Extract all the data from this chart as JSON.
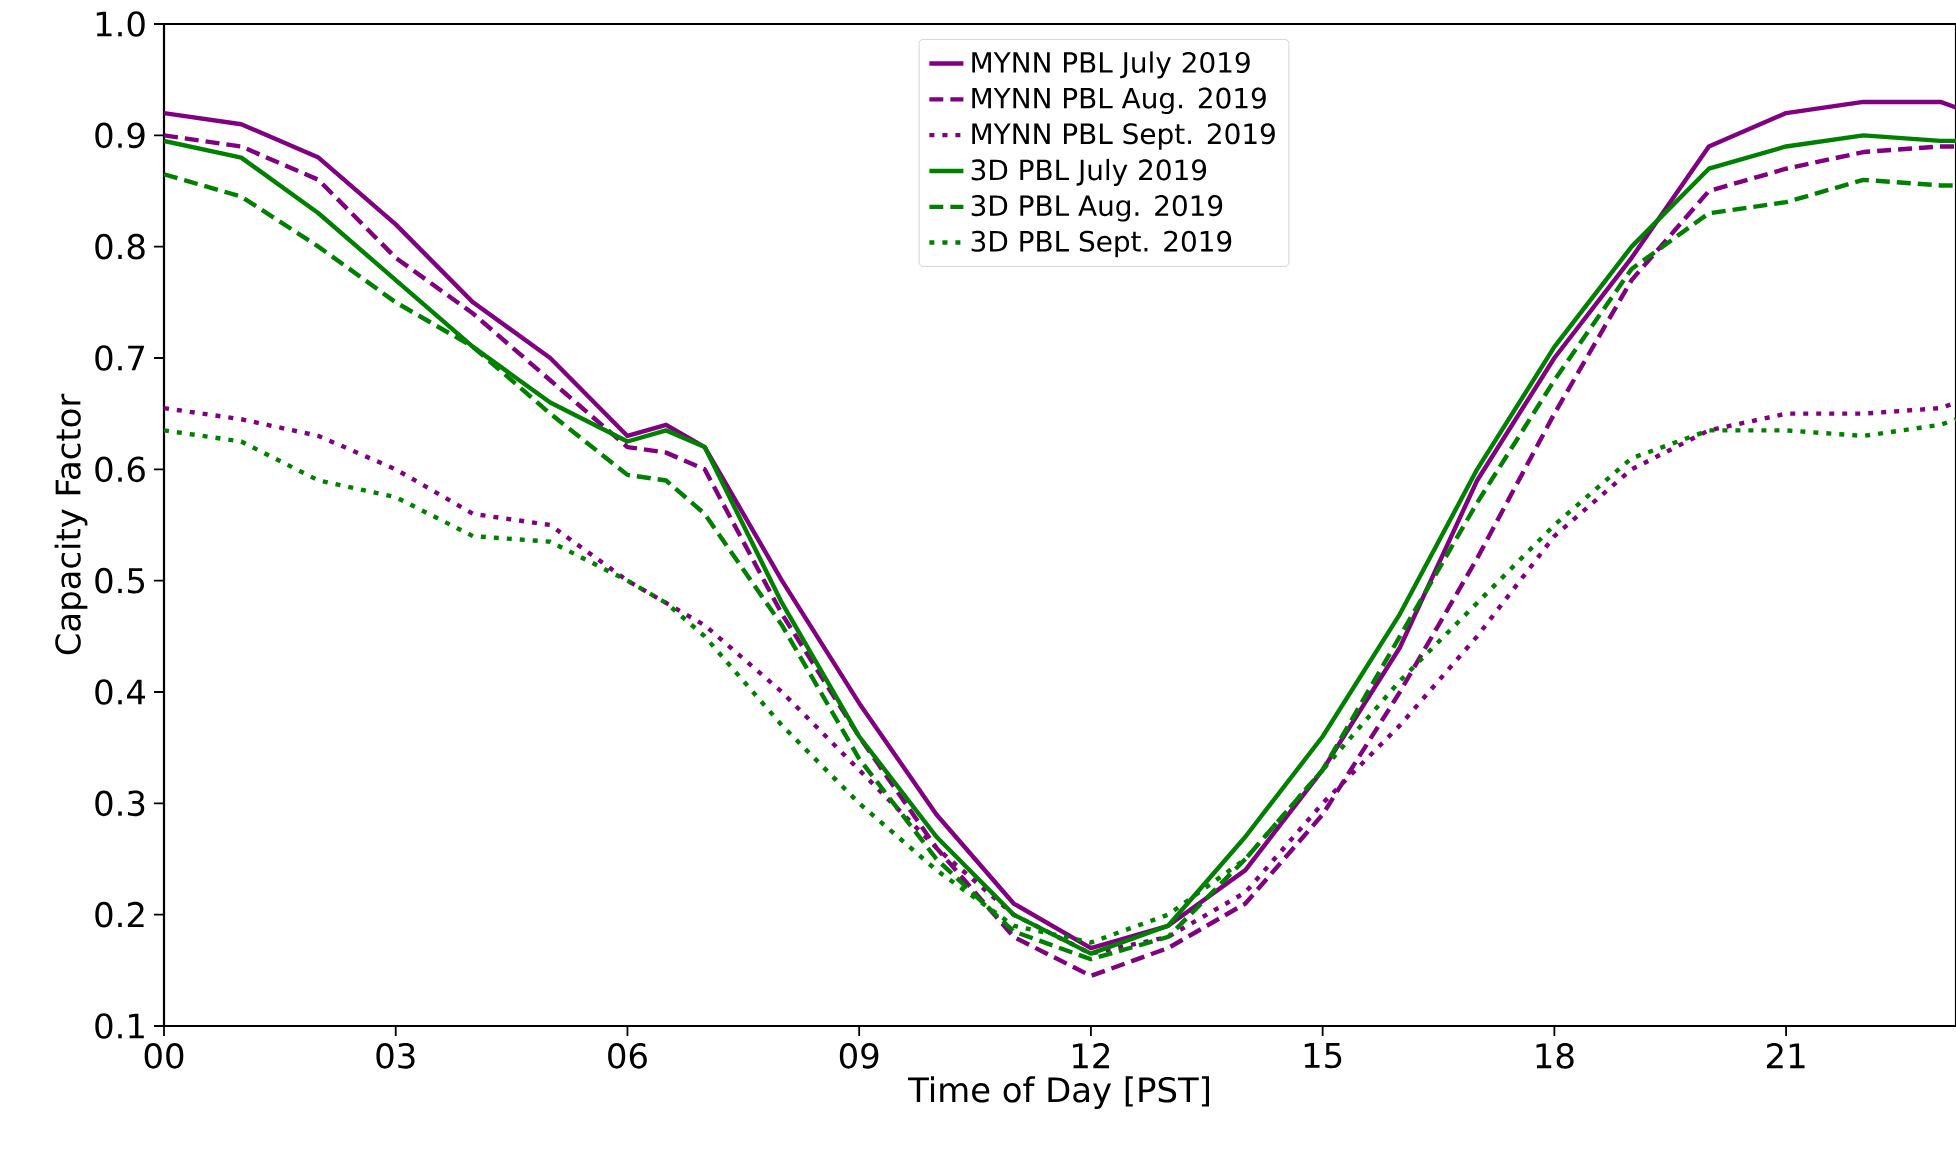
{
  "chart_data": {
    "type": "line",
    "xlabel": "Time of Day [PST]",
    "ylabel": "Capacity Factor",
    "x": [
      0,
      1,
      2,
      3,
      4,
      5,
      6,
      6.5,
      7,
      8,
      9,
      10,
      11,
      12,
      13,
      14,
      15,
      16,
      17,
      18,
      19,
      20,
      21,
      22,
      23,
      23.2
    ],
    "series": [
      {
        "name": "MYNN PBL July 2019",
        "color": "#800080",
        "line_style": "solid",
        "values": [
          0.92,
          0.91,
          0.88,
          0.82,
          0.75,
          0.7,
          0.63,
          0.64,
          0.62,
          0.5,
          0.39,
          0.29,
          0.21,
          0.17,
          0.19,
          0.24,
          0.33,
          0.44,
          0.59,
          0.7,
          0.79,
          0.89,
          0.92,
          0.93,
          0.93,
          0.925
        ]
      },
      {
        "name": "MYNN PBL Aug. 2019",
        "color": "#800080",
        "line_style": "dashed",
        "values": [
          0.9,
          0.89,
          0.86,
          0.79,
          0.74,
          0.68,
          0.62,
          0.615,
          0.6,
          0.47,
          0.36,
          0.26,
          0.18,
          0.145,
          0.17,
          0.21,
          0.29,
          0.4,
          0.52,
          0.65,
          0.77,
          0.85,
          0.87,
          0.885,
          0.89,
          0.89
        ]
      },
      {
        "name": "MYNN PBL Sept. 2019",
        "color": "#800080",
        "line_style": "dotted",
        "values": [
          0.655,
          0.645,
          0.63,
          0.6,
          0.56,
          0.55,
          0.5,
          0.48,
          0.46,
          0.4,
          0.33,
          0.26,
          0.2,
          0.165,
          0.18,
          0.22,
          0.3,
          0.37,
          0.45,
          0.54,
          0.6,
          0.635,
          0.65,
          0.65,
          0.655,
          0.66
        ]
      },
      {
        "name": "3D PBL July 2019",
        "color": "#008000",
        "line_style": "solid",
        "values": [
          0.895,
          0.88,
          0.83,
          0.77,
          0.71,
          0.66,
          0.625,
          0.635,
          0.62,
          0.48,
          0.36,
          0.27,
          0.2,
          0.165,
          0.19,
          0.27,
          0.36,
          0.47,
          0.6,
          0.71,
          0.8,
          0.87,
          0.89,
          0.9,
          0.895,
          0.895
        ]
      },
      {
        "name": "3D PBL Aug. 2019",
        "color": "#008000",
        "line_style": "dashed",
        "values": [
          0.865,
          0.845,
          0.8,
          0.75,
          0.71,
          0.65,
          0.595,
          0.59,
          0.56,
          0.46,
          0.34,
          0.25,
          0.185,
          0.16,
          0.18,
          0.25,
          0.33,
          0.45,
          0.57,
          0.68,
          0.78,
          0.83,
          0.84,
          0.86,
          0.855,
          0.855
        ]
      },
      {
        "name": "3D PBL Sept. 2019",
        "color": "#008000",
        "line_style": "dotted",
        "values": [
          0.635,
          0.625,
          0.59,
          0.575,
          0.54,
          0.535,
          0.5,
          0.48,
          0.45,
          0.37,
          0.3,
          0.24,
          0.19,
          0.175,
          0.2,
          0.25,
          0.33,
          0.41,
          0.48,
          0.55,
          0.61,
          0.635,
          0.635,
          0.63,
          0.64,
          0.645
        ]
      }
    ],
    "xlim": [
      0,
      23.2
    ],
    "ylim": [
      0.1,
      1.0
    ],
    "xticks": [
      {
        "value": 0,
        "label": "00"
      },
      {
        "value": 3,
        "label": "03"
      },
      {
        "value": 6,
        "label": "06"
      },
      {
        "value": 9,
        "label": "09"
      },
      {
        "value": 12,
        "label": "12"
      },
      {
        "value": 15,
        "label": "15"
      },
      {
        "value": 18,
        "label": "18"
      },
      {
        "value": 21,
        "label": "21"
      }
    ],
    "yticks": [
      0.1,
      0.2,
      0.3,
      0.4,
      0.5,
      0.6,
      0.7,
      0.8,
      0.9,
      {
        "value": 1.0,
        "label": "1.0"
      }
    ],
    "legend": "top",
    "grid": false
  }
}
